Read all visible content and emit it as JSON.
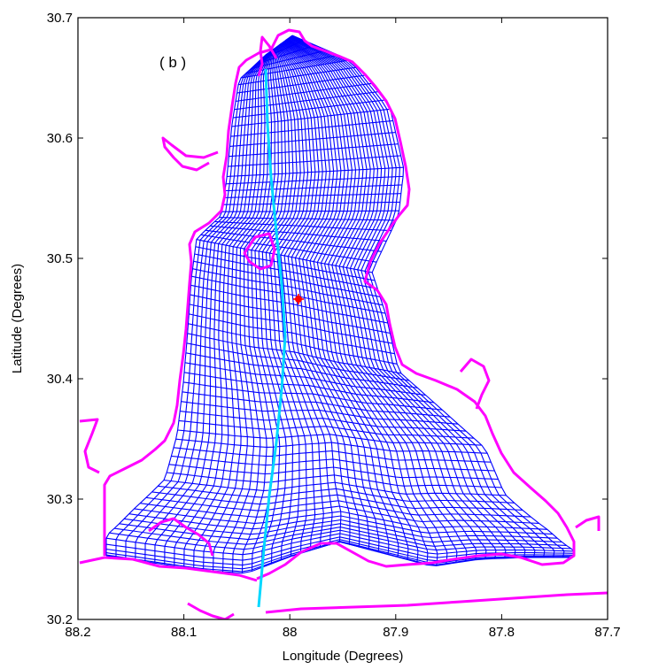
{
  "panel_label": "( b )",
  "axes": {
    "xlabel": "Longitude (Degrees)",
    "ylabel": "Latitude (Degrees)",
    "xlim": [
      88.2,
      87.7
    ],
    "ylim": [
      30.2,
      30.7
    ],
    "x_reversed": true,
    "xticks": [
      "88.2",
      "88.1",
      "88",
      "87.9",
      "87.8",
      "87.7"
    ],
    "yticks": [
      "30.2",
      "30.3",
      "30.4",
      "30.5",
      "30.6",
      "30.7"
    ]
  },
  "colors": {
    "grid_mesh": "#0000ff",
    "coastline": "#ff00ff",
    "transect": "#00d8ff",
    "station": "#ff0000"
  },
  "features": {
    "station_marker": {
      "lon": 87.998,
      "lat": 30.467
    },
    "transect_line": {
      "start": {
        "lon": 88.033,
        "lat": 30.657
      },
      "end": {
        "lon": 88.038,
        "lat": 30.208
      }
    }
  }
}
